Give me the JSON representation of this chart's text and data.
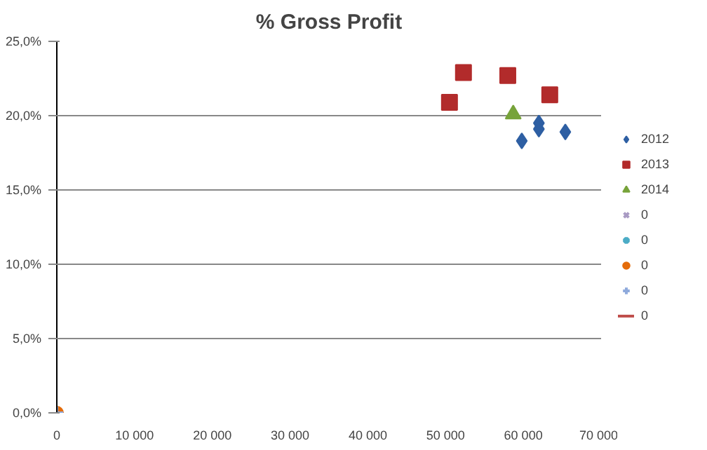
{
  "chart_data": {
    "type": "scatter",
    "title": "% Gross Profit",
    "xlim": [
      0,
      70000
    ],
    "xticks": [
      {
        "value": 0,
        "label": "0"
      },
      {
        "value": 10000,
        "label": "10 000"
      },
      {
        "value": 20000,
        "label": "20 000"
      },
      {
        "value": 30000,
        "label": "30 000"
      },
      {
        "value": 40000,
        "label": "40 000"
      },
      {
        "value": 50000,
        "label": "50 000"
      },
      {
        "value": 60000,
        "label": "60 000"
      },
      {
        "value": 70000,
        "label": "70 000"
      }
    ],
    "ylim": [
      0,
      25
    ],
    "yticks": [
      {
        "value": 0,
        "label": "0,0%"
      },
      {
        "value": 5,
        "label": "5,0%"
      },
      {
        "value": 10,
        "label": "10,0%"
      },
      {
        "value": 15,
        "label": "15,0%"
      },
      {
        "value": 20,
        "label": "20,0%"
      },
      {
        "value": 25,
        "label": "25,0%"
      }
    ],
    "grid": "y",
    "legend": "right",
    "series": [
      {
        "name": "2012",
        "color": "#2e5fa3",
        "marker": "diamond",
        "x": [
          59800,
          62000,
          62000,
          65400
        ],
        "values": [
          18.3,
          19.5,
          19.1,
          18.9
        ]
      },
      {
        "name": "2013",
        "color": "#b22b2b",
        "marker": "square",
        "x": [
          50500,
          52300,
          58000,
          63400
        ],
        "values": [
          20.9,
          22.9,
          22.7,
          21.4
        ]
      },
      {
        "name": "2014",
        "color": "#77a33a",
        "marker": "triangle",
        "x": [
          58700
        ],
        "values": [
          20.1
        ]
      },
      {
        "name": "0",
        "color": "#a99bc4",
        "marker": "x",
        "values": [
          null
        ]
      },
      {
        "name": "0",
        "color": "#4bacc6",
        "marker": "star",
        "values": [
          null
        ]
      },
      {
        "name": "0",
        "color": "#e46c0a",
        "marker": "circle",
        "x": [
          0
        ],
        "values": [
          0
        ]
      },
      {
        "name": "0",
        "color": "#8faadc",
        "marker": "cross",
        "x": [
          0
        ],
        "values": [
          0
        ]
      },
      {
        "name": "0",
        "color": "#c0504d",
        "marker": "none",
        "values": [
          null
        ]
      }
    ]
  }
}
